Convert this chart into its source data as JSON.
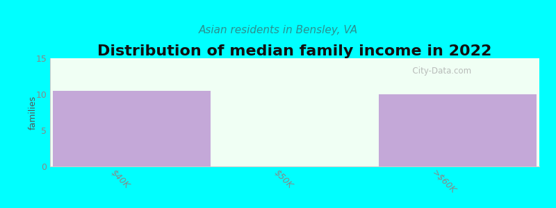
{
  "title": "Distribution of median family income in 2022",
  "subtitle": "Asian residents in Bensley, VA",
  "categories": [
    "$40K",
    "$50K",
    ">$60K"
  ],
  "values": [
    10.5,
    0,
    10.0
  ],
  "bar_color": "#c4a8d8",
  "plot_bg_color": "#f0fff4",
  "background_color": "#00ffff",
  "ylabel": "families",
  "ylim": [
    0,
    15
  ],
  "yticks": [
    0,
    5,
    10,
    15
  ],
  "bar_width": 0.97,
  "title_fontsize": 16,
  "subtitle_fontsize": 11,
  "subtitle_color": "#2a9090",
  "watermark": "  City-Data.com"
}
